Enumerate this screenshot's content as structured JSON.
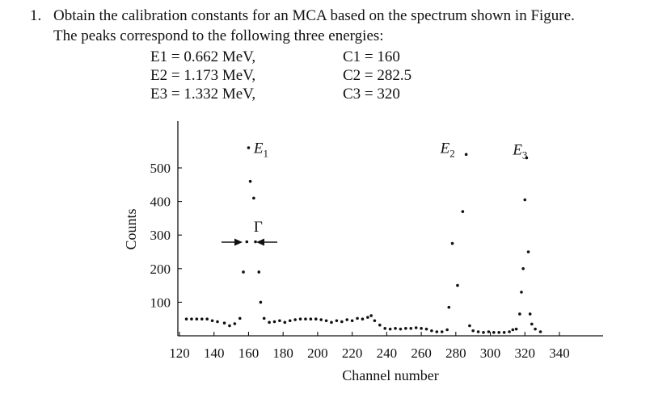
{
  "question": {
    "number": "1.",
    "line1": "Obtain the calibration constants for an MCA based on the spectrum shown in Figure.",
    "line2": "The peaks correspond to the following three energies:",
    "energies": [
      {
        "e": "E1 = 0.662 MeV,",
        "c": "C1 = 160"
      },
      {
        "e": "E2 = 1.173 MeV,",
        "c": "C2 = 282.5"
      },
      {
        "e": "E3 = 1.332 MeV,",
        "c": "C3 = 320"
      }
    ]
  },
  "chart_data": {
    "type": "scatter",
    "xlabel": "Channel number",
    "ylabel": "Counts",
    "xlim": [
      120,
      340
    ],
    "ylim": [
      0,
      530
    ],
    "x_ticks": [
      120,
      140,
      160,
      180,
      200,
      220,
      240,
      260,
      280,
      300,
      320,
      340
    ],
    "y_ticks": [
      100,
      200,
      300,
      400,
      500
    ],
    "grid": false,
    "series": [
      {
        "points": [
          [
            124,
            50
          ],
          [
            127,
            50
          ],
          [
            130,
            50
          ],
          [
            133,
            50
          ],
          [
            136,
            50
          ],
          [
            139,
            45
          ],
          [
            142,
            42
          ],
          [
            146,
            38
          ],
          [
            149,
            30
          ],
          [
            152,
            36
          ],
          [
            155,
            52
          ],
          [
            157,
            190
          ],
          [
            159,
            280
          ],
          [
            160,
            560
          ],
          [
            161,
            460
          ],
          [
            163,
            410
          ],
          [
            164,
            280
          ],
          [
            166,
            190
          ],
          [
            167,
            100
          ],
          [
            169,
            52
          ],
          [
            172,
            40
          ],
          [
            175,
            42
          ],
          [
            178,
            45
          ],
          [
            181,
            40
          ],
          [
            184,
            45
          ],
          [
            187,
            48
          ],
          [
            190,
            50
          ],
          [
            193,
            50
          ],
          [
            196,
            50
          ],
          [
            199,
            50
          ],
          [
            202,
            48
          ],
          [
            205,
            45
          ],
          [
            208,
            40
          ],
          [
            211,
            45
          ],
          [
            214,
            42
          ],
          [
            217,
            48
          ],
          [
            220,
            45
          ],
          [
            223,
            52
          ],
          [
            226,
            50
          ],
          [
            229,
            55
          ],
          [
            231,
            60
          ],
          [
            233,
            45
          ],
          [
            236,
            32
          ],
          [
            239,
            22
          ],
          [
            242,
            20
          ],
          [
            245,
            22
          ],
          [
            248,
            20
          ],
          [
            251,
            22
          ],
          [
            254,
            22
          ],
          [
            257,
            24
          ],
          [
            260,
            22
          ],
          [
            263,
            20
          ],
          [
            266,
            15
          ],
          [
            269,
            12
          ],
          [
            272,
            12
          ],
          [
            275,
            18
          ],
          [
            276,
            85
          ],
          [
            278,
            275
          ],
          [
            281,
            150
          ],
          [
            284,
            370
          ],
          [
            286,
            540
          ],
          [
            288,
            30
          ],
          [
            290,
            15
          ],
          [
            293,
            12
          ],
          [
            296,
            10
          ],
          [
            299,
            12
          ],
          [
            302,
            10
          ],
          [
            305,
            10
          ],
          [
            308,
            10
          ],
          [
            311,
            12
          ],
          [
            313,
            18
          ],
          [
            315,
            20
          ],
          [
            317,
            65
          ],
          [
            318,
            130
          ],
          [
            319,
            200
          ],
          [
            320,
            405
          ],
          [
            321,
            530
          ],
          [
            322,
            250
          ],
          [
            323,
            65
          ],
          [
            324,
            35
          ],
          [
            326,
            20
          ],
          [
            329,
            12
          ]
        ]
      }
    ],
    "annotations": [
      {
        "text": "E",
        "sub": "1",
        "x": 163,
        "y": 545
      },
      {
        "text": "E",
        "sub": "2",
        "x": 271,
        "y": 545
      },
      {
        "text": "E",
        "sub": "3",
        "x": 313,
        "y": 540
      },
      {
        "text": "Γ",
        "x": 163,
        "y": 310
      }
    ]
  }
}
